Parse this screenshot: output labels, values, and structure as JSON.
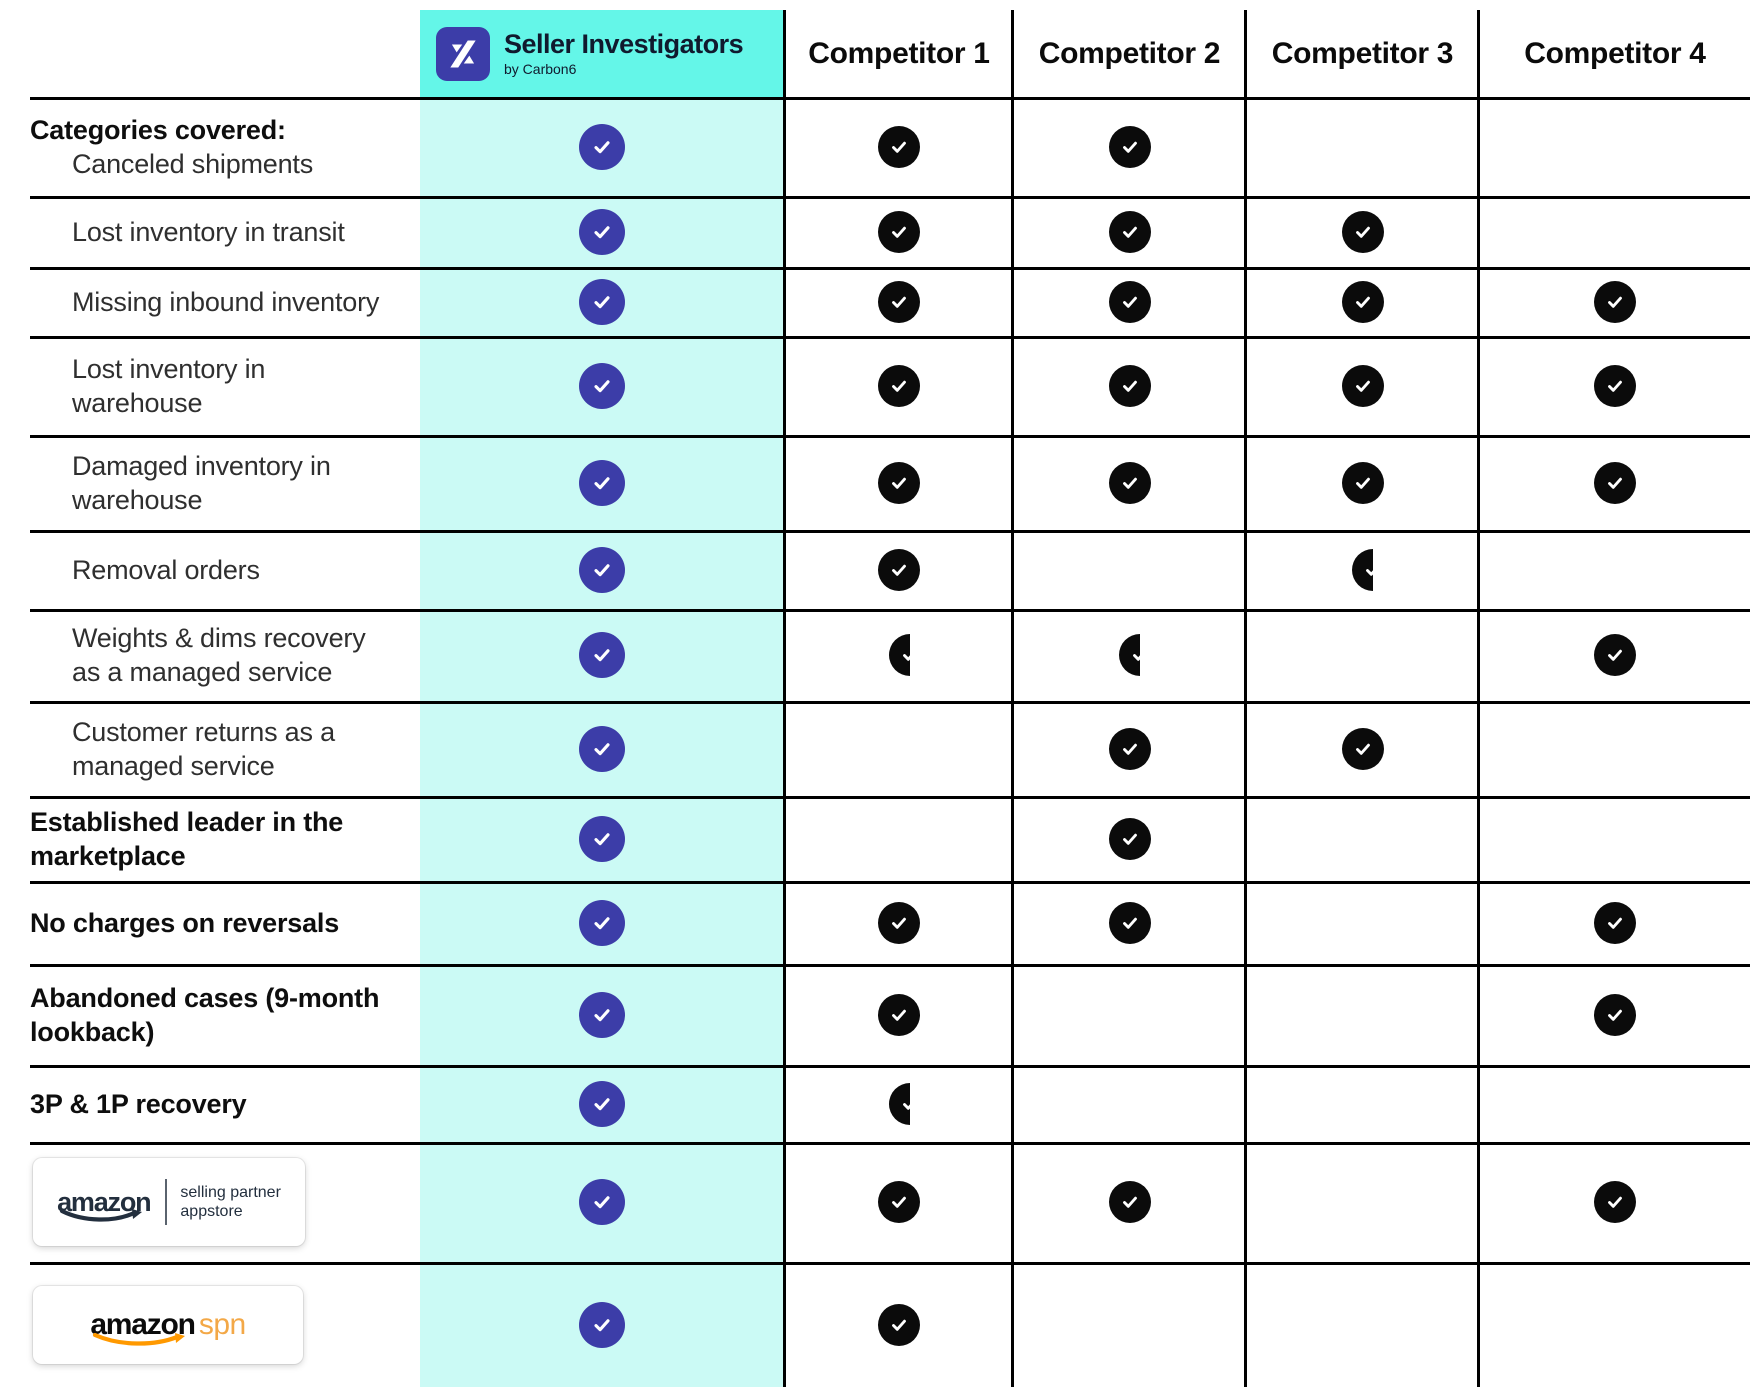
{
  "colors": {
    "header_cyan": "#64F6E8",
    "body_cyan": "#CBFAF5",
    "check_blue": "#3C3DA8",
    "check_black": "#0B0B0B",
    "amazon_navy": "#232F3E",
    "amazon_orange": "#FF9900",
    "spn_orange": "#F3A847"
  },
  "header": {
    "product": {
      "logo": "seller-investigators-logo",
      "name": "Seller Investigators",
      "byline": "by Carbon6"
    },
    "competitors": [
      "Competitor 1",
      "Competitor 2",
      "Competitor 3",
      "Competitor 4"
    ]
  },
  "cell_legend": {
    "check": "covered",
    "half": "partially covered",
    "none": "not covered"
  },
  "rows": [
    {
      "id": "canceled-shipments",
      "bold_prefix": "Categories covered:",
      "lines": [
        "Canceled shipments"
      ],
      "indent": true,
      "bold": false,
      "cells": [
        "check",
        "check",
        "check",
        "none",
        "none"
      ]
    },
    {
      "id": "lost-inventory-in-transit",
      "lines": [
        "Lost inventory in transit"
      ],
      "indent": true,
      "bold": false,
      "cells": [
        "check",
        "check",
        "check",
        "check",
        "none"
      ]
    },
    {
      "id": "missing-inbound-inventory",
      "lines": [
        "Missing inbound inventory"
      ],
      "indent": true,
      "bold": false,
      "cells": [
        "check",
        "check",
        "check",
        "check",
        "check"
      ]
    },
    {
      "id": "lost-inventory-in-warehouse",
      "lines": [
        "Lost inventory in",
        "warehouse"
      ],
      "indent": true,
      "bold": false,
      "cells": [
        "check",
        "check",
        "check",
        "check",
        "check"
      ]
    },
    {
      "id": "damaged-inventory-in-warehouse",
      "lines": [
        "Damaged inventory in",
        "warehouse"
      ],
      "indent": true,
      "bold": false,
      "cells": [
        "check",
        "check",
        "check",
        "check",
        "check"
      ]
    },
    {
      "id": "removal-orders",
      "lines": [
        "Removal orders"
      ],
      "indent": true,
      "bold": false,
      "cells": [
        "check",
        "check",
        "none",
        "half",
        "none"
      ]
    },
    {
      "id": "weights-dims-recovery",
      "lines": [
        "Weights & dims recovery",
        "as a managed service"
      ],
      "indent": true,
      "bold": false,
      "cells": [
        "check",
        "half",
        "half",
        "none",
        "check"
      ]
    },
    {
      "id": "customer-returns",
      "lines": [
        "Customer returns as a",
        "managed service"
      ],
      "indent": true,
      "bold": false,
      "cells": [
        "check",
        "none",
        "check",
        "check",
        "none"
      ]
    },
    {
      "id": "established-leader",
      "lines": [
        "Established leader in the",
        "marketplace"
      ],
      "indent": false,
      "bold": true,
      "cells": [
        "check",
        "none",
        "check",
        "none",
        "none"
      ]
    },
    {
      "id": "no-charges-on-reversals",
      "lines": [
        "No charges on reversals"
      ],
      "indent": false,
      "bold": true,
      "cells": [
        "check",
        "check",
        "check",
        "none",
        "check"
      ]
    },
    {
      "id": "abandoned-cases",
      "lines": [
        "Abandoned cases (9-month",
        "lookback)"
      ],
      "indent": false,
      "bold": true,
      "cells": [
        "check",
        "check",
        "none",
        "none",
        "check"
      ]
    },
    {
      "id": "3p-1p-recovery",
      "lines": [
        "3P & 1P recovery"
      ],
      "indent": false,
      "bold": true,
      "cells": [
        "check",
        "half",
        "none",
        "none",
        "none"
      ]
    },
    {
      "id": "amazon-selling-partner-appstore",
      "logo": "appstore",
      "logo_text": {
        "brand": "amazon",
        "line1": "selling partner",
        "line2": "appstore"
      },
      "cells": [
        "check",
        "check",
        "check",
        "none",
        "check"
      ]
    },
    {
      "id": "amazon-spn",
      "logo": "spn",
      "logo_text": {
        "brand": "amazon",
        "suffix": "spn"
      },
      "cells": [
        "check",
        "check",
        "none",
        "none",
        "none"
      ]
    }
  ]
}
